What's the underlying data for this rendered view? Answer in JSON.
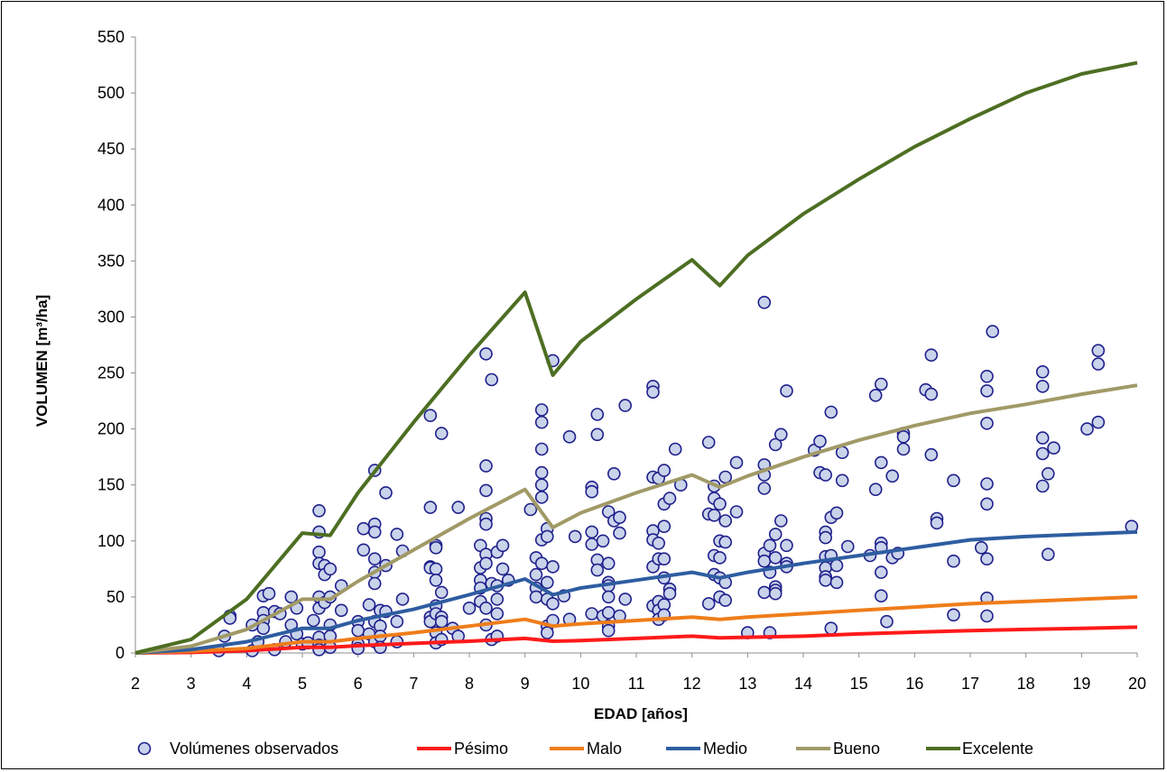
{
  "chart_data": {
    "type": "scatter",
    "xlabel": "EDAD [años]",
    "ylabel": "VOLUMEN [m³/ha]",
    "xlim": [
      2,
      20
    ],
    "ylim": [
      0,
      550
    ],
    "xticks": [
      "2",
      "3",
      "4",
      "5",
      "6",
      "7",
      "8",
      "9",
      "10",
      "11",
      "12",
      "13",
      "14",
      "15",
      "16",
      "17",
      "18",
      "19",
      "20"
    ],
    "yticks": [
      "0",
      "50",
      "100",
      "150",
      "200",
      "250",
      "300",
      "350",
      "400",
      "450",
      "500",
      "550"
    ],
    "grid": false,
    "legend_position": "bottom",
    "scatter": {
      "name": "Volúmenes observados",
      "color": "#c9d3ea",
      "edge_color": "#1f1f8c",
      "points": [
        [
          3.5,
          2
        ],
        [
          3.6,
          15
        ],
        [
          3.7,
          33
        ],
        [
          3.7,
          31
        ],
        [
          4.1,
          25
        ],
        [
          4.1,
          2
        ],
        [
          4.2,
          10
        ],
        [
          4.3,
          51
        ],
        [
          4.3,
          36
        ],
        [
          4.3,
          29
        ],
        [
          4.3,
          22
        ],
        [
          4.4,
          53
        ],
        [
          4.5,
          3
        ],
        [
          4.5,
          37
        ],
        [
          4.6,
          35
        ],
        [
          4.7,
          10
        ],
        [
          4.8,
          50
        ],
        [
          4.8,
          25
        ],
        [
          4.9,
          40
        ],
        [
          4.9,
          17
        ],
        [
          5.0,
          8
        ],
        [
          5.1,
          9
        ],
        [
          5.2,
          29
        ],
        [
          5.3,
          127
        ],
        [
          5.3,
          108
        ],
        [
          5.3,
          90
        ],
        [
          5.3,
          80
        ],
        [
          5.3,
          50
        ],
        [
          5.3,
          40
        ],
        [
          5.3,
          14
        ],
        [
          5.3,
          7
        ],
        [
          5.3,
          3
        ],
        [
          5.4,
          78
        ],
        [
          5.4,
          70
        ],
        [
          5.4,
          45
        ],
        [
          5.5,
          75
        ],
        [
          5.5,
          50
        ],
        [
          5.5,
          25
        ],
        [
          5.5,
          15
        ],
        [
          5.5,
          5
        ],
        [
          5.7,
          60
        ],
        [
          5.7,
          38
        ],
        [
          6.0,
          28
        ],
        [
          6.0,
          20
        ],
        [
          6.0,
          8
        ],
        [
          6.0,
          4
        ],
        [
          6.1,
          111
        ],
        [
          6.1,
          92
        ],
        [
          6.2,
          43
        ],
        [
          6.2,
          17
        ],
        [
          6.3,
          163
        ],
        [
          6.3,
          115
        ],
        [
          6.3,
          108
        ],
        [
          6.3,
          84
        ],
        [
          6.3,
          72
        ],
        [
          6.3,
          62
        ],
        [
          6.3,
          28
        ],
        [
          6.3,
          10
        ],
        [
          6.4,
          38
        ],
        [
          6.4,
          24
        ],
        [
          6.4,
          15
        ],
        [
          6.4,
          5
        ],
        [
          6.5,
          143
        ],
        [
          6.5,
          78
        ],
        [
          6.5,
          37
        ],
        [
          6.7,
          106
        ],
        [
          6.7,
          28
        ],
        [
          6.7,
          10
        ],
        [
          6.8,
          91
        ],
        [
          6.8,
          48
        ],
        [
          7.3,
          212
        ],
        [
          7.3,
          130
        ],
        [
          7.3,
          77
        ],
        [
          7.3,
          76
        ],
        [
          7.3,
          32
        ],
        [
          7.3,
          28
        ],
        [
          7.4,
          96
        ],
        [
          7.4,
          94
        ],
        [
          7.4,
          75
        ],
        [
          7.4,
          65
        ],
        [
          7.4,
          42
        ],
        [
          7.4,
          35
        ],
        [
          7.4,
          18
        ],
        [
          7.4,
          9
        ],
        [
          7.5,
          196
        ],
        [
          7.5,
          54
        ],
        [
          7.5,
          32
        ],
        [
          7.5,
          28
        ],
        [
          7.5,
          12
        ],
        [
          7.7,
          22
        ],
        [
          7.8,
          130
        ],
        [
          7.8,
          15
        ],
        [
          8.0,
          40
        ],
        [
          8.2,
          96
        ],
        [
          8.2,
          76
        ],
        [
          8.2,
          65
        ],
        [
          8.2,
          58
        ],
        [
          8.2,
          46
        ],
        [
          8.3,
          267
        ],
        [
          8.3,
          167
        ],
        [
          8.3,
          145
        ],
        [
          8.3,
          120
        ],
        [
          8.3,
          115
        ],
        [
          8.3,
          88
        ],
        [
          8.3,
          80
        ],
        [
          8.3,
          40
        ],
        [
          8.3,
          25
        ],
        [
          8.4,
          244
        ],
        [
          8.4,
          62
        ],
        [
          8.4,
          12
        ],
        [
          8.5,
          90
        ],
        [
          8.5,
          60
        ],
        [
          8.5,
          48
        ],
        [
          8.5,
          35
        ],
        [
          8.5,
          15
        ],
        [
          8.6,
          96
        ],
        [
          8.6,
          75
        ],
        [
          8.7,
          65
        ],
        [
          9.1,
          128
        ],
        [
          9.2,
          85
        ],
        [
          9.2,
          70
        ],
        [
          9.2,
          58
        ],
        [
          9.2,
          50
        ],
        [
          9.3,
          217
        ],
        [
          9.3,
          206
        ],
        [
          9.3,
          182
        ],
        [
          9.3,
          161
        ],
        [
          9.3,
          150
        ],
        [
          9.3,
          139
        ],
        [
          9.3,
          101
        ],
        [
          9.3,
          80
        ],
        [
          9.4,
          111
        ],
        [
          9.4,
          104
        ],
        [
          9.4,
          63
        ],
        [
          9.4,
          48
        ],
        [
          9.4,
          24
        ],
        [
          9.4,
          18
        ],
        [
          9.5,
          261
        ],
        [
          9.5,
          77
        ],
        [
          9.5,
          44
        ],
        [
          9.5,
          29
        ],
        [
          9.7,
          51
        ],
        [
          9.8,
          30
        ],
        [
          9.8,
          193
        ],
        [
          9.9,
          104
        ],
        [
          10.2,
          148
        ],
        [
          10.2,
          144
        ],
        [
          10.2,
          108
        ],
        [
          10.2,
          97
        ],
        [
          10.2,
          35
        ],
        [
          10.3,
          213
        ],
        [
          10.3,
          195
        ],
        [
          10.3,
          83
        ],
        [
          10.3,
          74
        ],
        [
          10.4,
          100
        ],
        [
          10.4,
          33
        ],
        [
          10.5,
          126
        ],
        [
          10.5,
          80
        ],
        [
          10.5,
          63
        ],
        [
          10.5,
          60
        ],
        [
          10.5,
          50
        ],
        [
          10.5,
          36
        ],
        [
          10.5,
          24
        ],
        [
          10.5,
          20
        ],
        [
          10.6,
          160
        ],
        [
          10.6,
          118
        ],
        [
          10.7,
          121
        ],
        [
          10.7,
          107
        ],
        [
          10.7,
          33
        ],
        [
          10.8,
          221
        ],
        [
          10.8,
          48
        ],
        [
          11.3,
          238
        ],
        [
          11.3,
          233
        ],
        [
          11.3,
          157
        ],
        [
          11.3,
          109
        ],
        [
          11.3,
          101
        ],
        [
          11.3,
          77
        ],
        [
          11.3,
          42
        ],
        [
          11.4,
          156
        ],
        [
          11.4,
          98
        ],
        [
          11.4,
          84
        ],
        [
          11.4,
          46
        ],
        [
          11.4,
          38
        ],
        [
          11.4,
          30
        ],
        [
          11.5,
          163
        ],
        [
          11.5,
          133
        ],
        [
          11.5,
          113
        ],
        [
          11.5,
          84
        ],
        [
          11.5,
          67
        ],
        [
          11.5,
          43
        ],
        [
          11.5,
          34
        ],
        [
          11.6,
          138
        ],
        [
          11.6,
          57
        ],
        [
          11.6,
          53
        ],
        [
          11.7,
          182
        ],
        [
          11.8,
          150
        ],
        [
          12.3,
          188
        ],
        [
          12.3,
          124
        ],
        [
          12.3,
          44
        ],
        [
          12.4,
          149
        ],
        [
          12.4,
          138
        ],
        [
          12.4,
          123
        ],
        [
          12.4,
          87
        ],
        [
          12.4,
          70
        ],
        [
          12.5,
          133
        ],
        [
          12.5,
          100
        ],
        [
          12.5,
          85
        ],
        [
          12.5,
          67
        ],
        [
          12.5,
          50
        ],
        [
          12.6,
          157
        ],
        [
          12.6,
          118
        ],
        [
          12.6,
          99
        ],
        [
          12.6,
          63
        ],
        [
          12.6,
          47
        ],
        [
          12.8,
          126
        ],
        [
          12.8,
          170
        ],
        [
          13.0,
          18
        ],
        [
          13.3,
          313
        ],
        [
          13.3,
          168
        ],
        [
          13.3,
          159
        ],
        [
          13.3,
          147
        ],
        [
          13.3,
          89
        ],
        [
          13.3,
          82
        ],
        [
          13.3,
          54
        ],
        [
          13.4,
          96
        ],
        [
          13.4,
          72
        ],
        [
          13.4,
          18
        ],
        [
          13.5,
          186
        ],
        [
          13.5,
          106
        ],
        [
          13.5,
          85
        ],
        [
          13.5,
          59
        ],
        [
          13.5,
          56
        ],
        [
          13.5,
          53
        ],
        [
          13.6,
          195
        ],
        [
          13.6,
          118
        ],
        [
          13.7,
          96
        ],
        [
          13.7,
          80
        ],
        [
          13.7,
          77
        ],
        [
          13.7,
          234
        ],
        [
          14.2,
          181
        ],
        [
          14.3,
          189
        ],
        [
          14.3,
          161
        ],
        [
          14.4,
          159
        ],
        [
          14.4,
          108
        ],
        [
          14.4,
          103
        ],
        [
          14.4,
          86
        ],
        [
          14.4,
          76
        ],
        [
          14.4,
          68
        ],
        [
          14.4,
          65
        ],
        [
          14.5,
          215
        ],
        [
          14.5,
          121
        ],
        [
          14.5,
          87
        ],
        [
          14.5,
          22
        ],
        [
          14.6,
          125
        ],
        [
          14.6,
          78
        ],
        [
          14.6,
          63
        ],
        [
          14.7,
          179
        ],
        [
          14.7,
          154
        ],
        [
          14.8,
          95
        ],
        [
          15.2,
          87
        ],
        [
          15.3,
          230
        ],
        [
          15.3,
          146
        ],
        [
          15.4,
          240
        ],
        [
          15.4,
          170
        ],
        [
          15.4,
          98
        ],
        [
          15.4,
          94
        ],
        [
          15.4,
          72
        ],
        [
          15.4,
          51
        ],
        [
          15.5,
          28
        ],
        [
          15.6,
          158
        ],
        [
          15.6,
          85
        ],
        [
          15.7,
          89
        ],
        [
          15.8,
          196
        ],
        [
          15.8,
          193
        ],
        [
          15.8,
          182
        ],
        [
          16.2,
          235
        ],
        [
          16.3,
          266
        ],
        [
          16.3,
          231
        ],
        [
          16.3,
          177
        ],
        [
          16.4,
          120
        ],
        [
          16.4,
          116
        ],
        [
          16.7,
          154
        ],
        [
          16.7,
          82
        ],
        [
          16.7,
          34
        ],
        [
          17.3,
          247
        ],
        [
          17.3,
          234
        ],
        [
          17.3,
          205
        ],
        [
          17.3,
          151
        ],
        [
          17.3,
          133
        ],
        [
          17.3,
          84
        ],
        [
          17.3,
          49
        ],
        [
          17.3,
          33
        ],
        [
          17.2,
          94
        ],
        [
          17.4,
          287
        ],
        [
          18.3,
          251
        ],
        [
          18.3,
          238
        ],
        [
          18.3,
          192
        ],
        [
          18.3,
          178
        ],
        [
          18.3,
          149
        ],
        [
          18.4,
          160
        ],
        [
          18.4,
          88
        ],
        [
          18.5,
          183
        ],
        [
          19.1,
          200
        ],
        [
          19.3,
          270
        ],
        [
          19.3,
          258
        ],
        [
          19.3,
          206
        ],
        [
          19.9,
          113
        ]
      ]
    },
    "series": [
      {
        "name": "Pésimo",
        "color": "#ff1a1a",
        "x": [
          2,
          3,
          4,
          5,
          5.5,
          6,
          7,
          8,
          9,
          9.5,
          10,
          11,
          12,
          12.5,
          13,
          14,
          15,
          16,
          17,
          18,
          19,
          20
        ],
        "y": [
          0,
          0.5,
          2,
          5,
          5,
          6.5,
          8.5,
          10.5,
          13,
          10.5,
          11,
          13,
          15,
          13.5,
          14,
          15,
          17,
          18.5,
          20,
          21,
          22,
          23
        ]
      },
      {
        "name": "Malo",
        "color": "#ef7d1a",
        "x": [
          2,
          3,
          4,
          5,
          5.5,
          6,
          7,
          8,
          9,
          9.5,
          10,
          11,
          12,
          12.5,
          13,
          14,
          15,
          16,
          17,
          18,
          19,
          20
        ],
        "y": [
          0,
          1.5,
          4,
          10,
          10,
          13,
          18,
          24,
          30,
          24,
          26,
          29,
          32,
          30,
          32,
          35,
          38,
          41,
          44,
          46,
          48,
          50
        ]
      },
      {
        "name": "Medio",
        "color": "#2e5da1",
        "x": [
          2,
          3,
          4,
          5,
          5.5,
          6,
          7,
          8,
          9,
          9.5,
          10,
          11,
          12,
          12.5,
          13,
          14,
          15,
          16,
          17,
          18,
          19,
          20
        ],
        "y": [
          0,
          3,
          10,
          22,
          22,
          29,
          39,
          52,
          66,
          52,
          58,
          65,
          72,
          67,
          72,
          80,
          87,
          94,
          101,
          104,
          106,
          108
        ]
      },
      {
        "name": "Bueno",
        "color": "#a19a67",
        "x": [
          2,
          3,
          4,
          5,
          5.5,
          6,
          7,
          8,
          9,
          9.5,
          10,
          11,
          12,
          12.5,
          13,
          14,
          15,
          16,
          17,
          18,
          19,
          20
        ],
        "y": [
          0,
          6,
          21,
          48,
          48,
          64,
          92,
          120,
          146,
          112,
          125,
          143,
          159,
          148,
          158,
          175,
          190,
          203,
          214,
          222,
          231,
          239
        ]
      },
      {
        "name": "Excelente",
        "color": "#4d6e22",
        "x": [
          2,
          3,
          4,
          5,
          5.5,
          6,
          7,
          8,
          9,
          9.5,
          10,
          11,
          12,
          12.5,
          13,
          14,
          15,
          16,
          17,
          18,
          19,
          20
        ],
        "y": [
          0,
          12,
          48,
          107,
          105,
          143,
          206,
          266,
          322,
          248,
          278,
          316,
          351,
          328,
          355,
          392,
          423,
          452,
          477,
          500,
          517,
          527
        ]
      }
    ]
  }
}
